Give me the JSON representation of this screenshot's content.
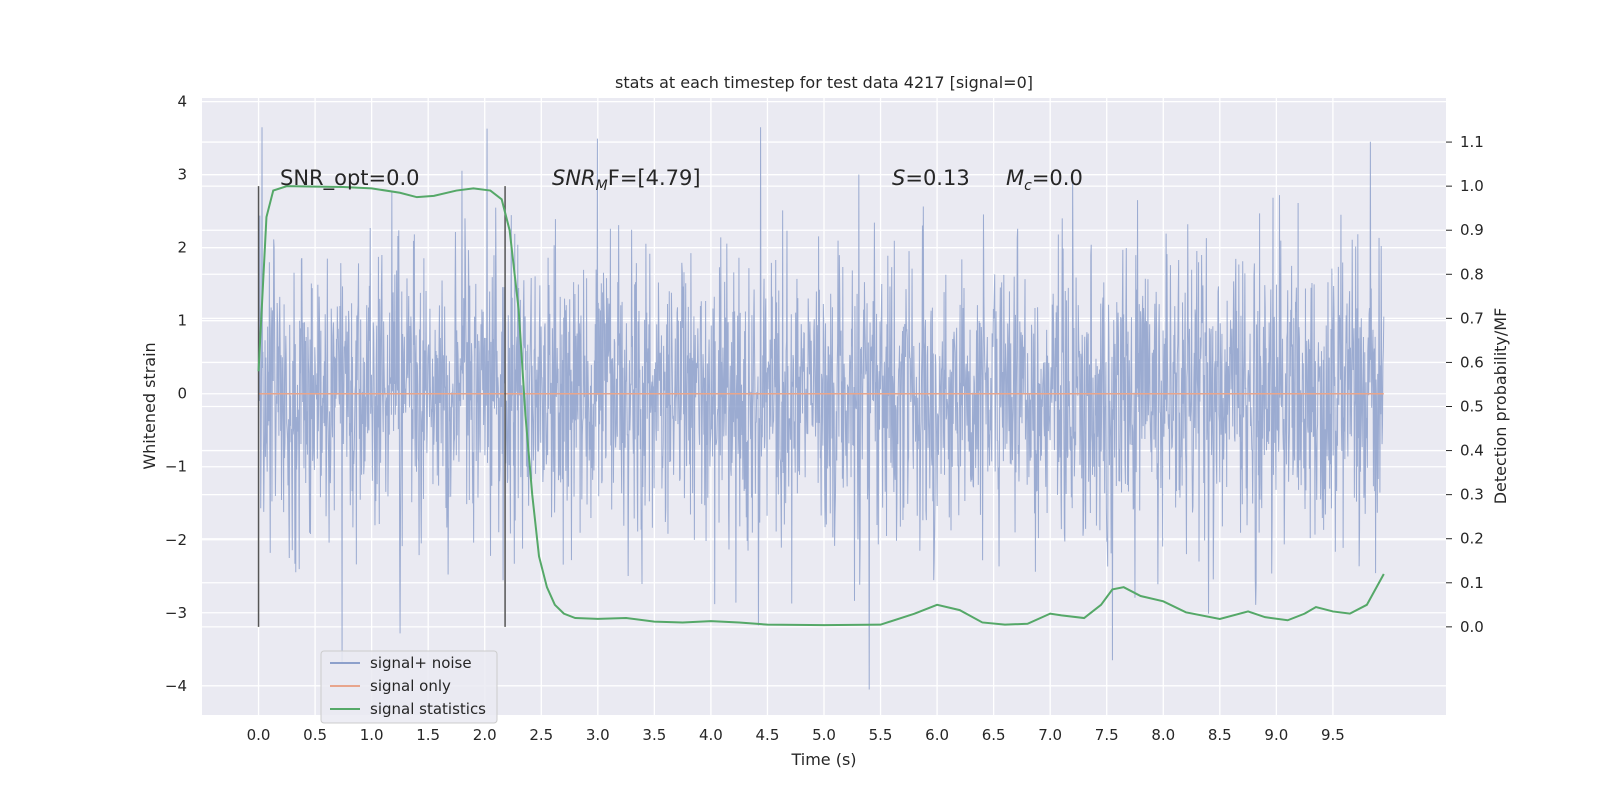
{
  "chart_data": {
    "type": "line",
    "title": "stats at each timestep for test data 4217 [signal=0]",
    "xlabel": "Time (s)",
    "ylabel": "Whitened strain",
    "ylabel_right": "Detection probability/MF",
    "xlim": [
      -0.5,
      10.5
    ],
    "ylim": [
      -4.4,
      4.05
    ],
    "ylim_right": [
      -0.2,
      1.2
    ],
    "x_ticks": [
      "0.0",
      "0.5",
      "1.0",
      "1.5",
      "2.0",
      "2.5",
      "3.0",
      "3.5",
      "4.0",
      "4.5",
      "5.0",
      "5.5",
      "6.0",
      "6.5",
      "7.0",
      "7.5",
      "8.0",
      "8.5",
      "9.0",
      "9.5"
    ],
    "y_ticks": [
      "4",
      "3",
      "2",
      "1",
      "0",
      "−1",
      "−2",
      "−3",
      "−4"
    ],
    "y_ticks_right": [
      "1.1",
      "1.0",
      "0.9",
      "0.8",
      "0.7",
      "0.6",
      "0.5",
      "0.4",
      "0.3",
      "0.2",
      "0.1",
      "0.0"
    ],
    "grid": true,
    "legend_position": "lower-left",
    "annotations": {
      "snr_opt": "SNR_opt=0.0",
      "snr_mf_sym": "SNR",
      "snr_mf_sub": "M",
      "snr_mf_tail": "F=[4.79]",
      "s_sym": "S",
      "s_val": "=0.13",
      "mc_sym": "M",
      "mc_sub": "c",
      "mc_val": "=0.0"
    },
    "markers": [
      0.0,
      2.18
    ],
    "series": [
      {
        "name": "signal+ noise",
        "color": "#8da0cb",
        "t_start": 0.0,
        "t_end": 9.95,
        "band_typical": [
          -1.5,
          1.6
        ],
        "extremes": [
          [
            0.03,
            3.65
          ],
          [
            2.02,
            3.63
          ],
          [
            4.44,
            3.65
          ],
          [
            9.83,
            3.45
          ],
          [
            5.4,
            -4.05
          ],
          [
            0.74,
            -3.7
          ],
          [
            7.55,
            -3.65
          ]
        ]
      },
      {
        "name": "signal only",
        "color": "#e8a58c",
        "x": [
          0.0,
          9.95
        ],
        "y": [
          0.0,
          0.0
        ]
      },
      {
        "name": "signal statistics",
        "color": "#55a868",
        "x": [
          0.0,
          0.07,
          0.13,
          0.25,
          0.5,
          0.75,
          1.0,
          1.25,
          1.4,
          1.55,
          1.75,
          1.9,
          2.05,
          2.15,
          2.22,
          2.3,
          2.36,
          2.42,
          2.48,
          2.55,
          2.62,
          2.7,
          2.8,
          3.0,
          3.25,
          3.5,
          3.75,
          4.0,
          4.25,
          4.5,
          5.0,
          5.5,
          5.8,
          6.0,
          6.2,
          6.4,
          6.6,
          6.8,
          7.0,
          7.1,
          7.3,
          7.45,
          7.55,
          7.65,
          7.8,
          8.0,
          8.2,
          8.5,
          8.75,
          8.9,
          9.1,
          9.25,
          9.35,
          9.5,
          9.65,
          9.8,
          9.95
        ],
        "y": [
          0.58,
          0.93,
          0.99,
          1.0,
          0.999,
          0.998,
          0.995,
          0.985,
          0.975,
          0.978,
          0.99,
          0.995,
          0.99,
          0.97,
          0.9,
          0.72,
          0.48,
          0.3,
          0.16,
          0.09,
          0.05,
          0.03,
          0.02,
          0.018,
          0.02,
          0.012,
          0.01,
          0.013,
          0.01,
          0.005,
          0.004,
          0.005,
          0.03,
          0.05,
          0.038,
          0.01,
          0.005,
          0.007,
          0.03,
          0.026,
          0.02,
          0.05,
          0.085,
          0.09,
          0.07,
          0.058,
          0.033,
          0.018,
          0.035,
          0.022,
          0.015,
          0.03,
          0.045,
          0.035,
          0.03,
          0.05,
          0.12
        ]
      }
    ]
  }
}
